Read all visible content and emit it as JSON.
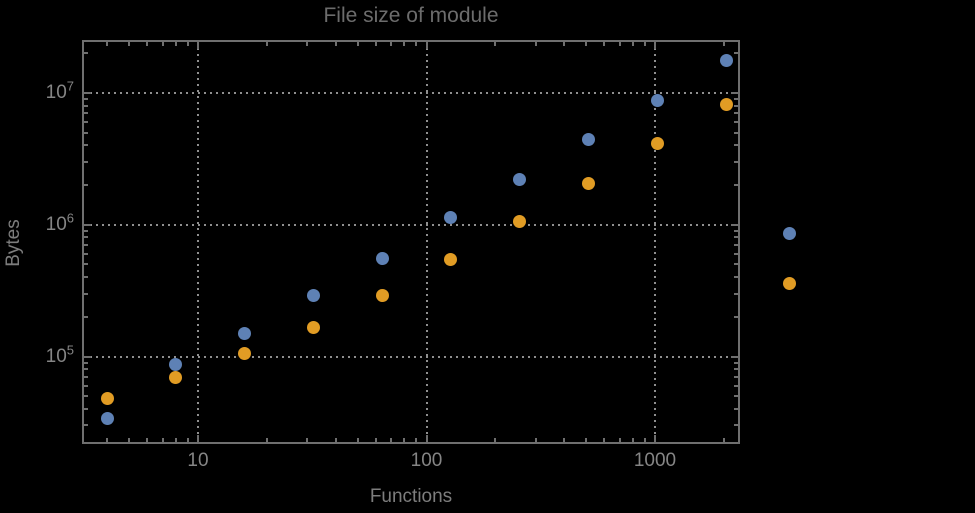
{
  "chart_data": {
    "type": "scatter",
    "title": "File size of module",
    "xlabel": "Functions",
    "ylabel": "Bytes",
    "x_scale": "log",
    "y_scale": "log",
    "xlim": [
      3.1,
      2360
    ],
    "ylim": [
      21600,
      25200000
    ],
    "grid": "dotted",
    "x_major_ticks": [
      10,
      100,
      1000
    ],
    "x_tick_labels": [
      "10",
      "100",
      "1000"
    ],
    "y_major_ticks": [
      100000,
      1000000,
      10000000
    ],
    "y_tick_exponents": [
      5,
      6,
      7
    ],
    "x": [
      4,
      8,
      16,
      32,
      64,
      128,
      256,
      512,
      1024,
      2048
    ],
    "series": [
      {
        "name": "series-1",
        "label": "",
        "color": "#5e81b5",
        "values": [
          34000,
          87000,
          150000,
          290000,
          550000,
          1130000,
          2200000,
          4400000,
          8800000,
          17500000
        ]
      },
      {
        "name": "series-2",
        "label": "",
        "color": "#e19c24",
        "values": [
          48000,
          69000,
          106000,
          166000,
          290000,
          540000,
          1050000,
          2060000,
          4100000,
          8100000
        ]
      }
    ],
    "legend": {
      "position": "right-outside",
      "labels_visible": false
    }
  },
  "colors": {
    "background": "#000000",
    "series_blue": "#5e81b5",
    "series_orange": "#e19c24",
    "frame": "#6f6f6f",
    "gridlines": "#8f8f8f",
    "tick_text": "#858585",
    "axis_label_text": "#7d7d7d",
    "title_text": "#6c6c6c"
  }
}
